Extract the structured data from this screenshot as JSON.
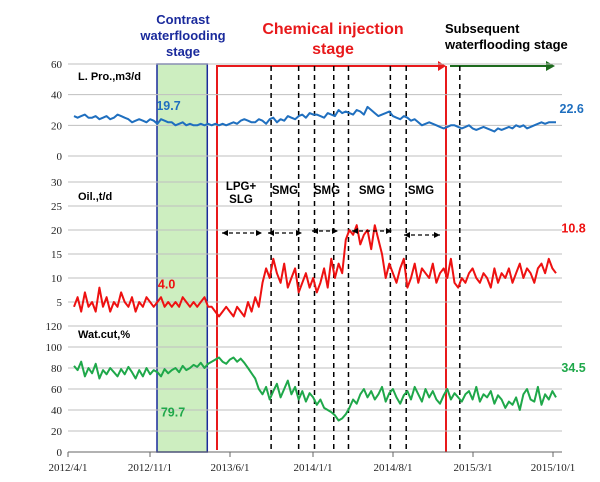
{
  "stages": {
    "contrast": [
      "Contrast",
      "waterflooding",
      "stage"
    ],
    "chemical": [
      "Chemical  injection",
      "stage"
    ],
    "subsequent": [
      "Subsequent",
      "waterflooding stage"
    ]
  },
  "segments": {
    "lpg": [
      "LPG+",
      "SLG"
    ],
    "smg": [
      "SMG",
      "SMG",
      "SMG",
      "SMG"
    ]
  },
  "panels": {
    "liquid_label": "L. Pro.,m3/d",
    "oil_label": "Oil.,t/d",
    "watcut_label": "Wat.cut,%"
  },
  "colors": {
    "liquid": "#1f6fbf",
    "oil": "#ee1111",
    "watcut": "#1fa84a",
    "stage_box": "#1a2a9c",
    "chemical": "#e8191b",
    "subsequent": "#1e6b1e",
    "contrast_fill": "#cdeec0"
  },
  "chart_data": {
    "type": "line",
    "x_ticks": [
      "2012/4/1",
      "2012/11/1",
      "2013/6/1",
      "2014/1/1",
      "2014/8/1",
      "2015/3/1",
      "2015/10/1"
    ],
    "markers": {
      "contrast_window": [
        "2012/11/1",
        "2013/3/1"
      ],
      "chemical_start": "2013/4/15",
      "subsequent_start": "2015/2/25",
      "dashed_lines": [
        "2013/9/15",
        "2013/11/25",
        "2014/1/5",
        "2014/2/25",
        "2014/4/5",
        "2014/7/25",
        "2014/9/5",
        "2015/1/25"
      ]
    },
    "panels": [
      {
        "name": "L. Pro.,m3/d",
        "ylim": [
          0,
          60
        ],
        "yticks": [
          0,
          20,
          40,
          60
        ],
        "series": [
          {
            "color": "liquid",
            "values": [
              26,
              25,
              26,
              27,
              25,
              25,
              26,
              24,
              25,
              26,
              24,
              25,
              27,
              26,
              25,
              24,
              22,
              23,
              24,
              23,
              22,
              24,
              23,
              21,
              24,
              23,
              22,
              22,
              20,
              21,
              22,
              20,
              21,
              20,
              20,
              21,
              20,
              21,
              20,
              21,
              20,
              21,
              20,
              21,
              22,
              21,
              23,
              24,
              23,
              22,
              22,
              24,
              23,
              21,
              24,
              25,
              22,
              24,
              23,
              26,
              25,
              24,
              26,
              27,
              25,
              28,
              27,
              27,
              26,
              25,
              28,
              27,
              26,
              30,
              28,
              29,
              28,
              27,
              30,
              29,
              27,
              32,
              30,
              28,
              26,
              27,
              28,
              29,
              26,
              25,
              24,
              26,
              25,
              23,
              24,
              22,
              20,
              21,
              22,
              21,
              20,
              19,
              18,
              19,
              20,
              20,
              19,
              18,
              19,
              20,
              18,
              17,
              18,
              19,
              18,
              17,
              16,
              18,
              17,
              18,
              19,
              18,
              20,
              19,
              20,
              18,
              19,
              20,
              21,
              22,
              21,
              22,
              22,
              22
            ]
          }
        ],
        "annotations": [
          {
            "text": "19.7",
            "color": "liquid",
            "x": "2012/12/20",
            "y": 30
          },
          {
            "text": "22.6",
            "color": "liquid",
            "x": "2015/11/20",
            "y": 28
          }
        ]
      },
      {
        "name": "Oil.,t/d",
        "ylim": [
          0,
          30
        ],
        "yticks": [
          0,
          5,
          10,
          15,
          20,
          25,
          30
        ],
        "series": [
          {
            "color": "oil",
            "values": [
              4,
              6,
              3,
              7,
              4,
              5,
              3,
              8,
              4,
              6,
              3,
              5,
              4,
              7,
              5,
              4,
              6,
              3,
              5,
              4,
              6,
              5,
              4,
              5,
              6,
              4,
              5,
              4,
              5,
              4,
              6,
              5,
              4,
              5,
              4,
              5,
              6,
              4,
              4,
              3,
              2,
              3,
              4,
              3,
              2,
              4,
              3,
              2,
              5,
              3,
              6,
              4,
              9,
              12,
              10,
              14,
              11,
              9,
              13,
              8,
              10,
              12,
              7,
              9,
              11,
              8,
              10,
              7,
              9,
              12,
              8,
              14,
              10,
              13,
              11,
              18,
              20,
              19,
              21,
              17,
              19,
              20,
              16,
              21,
              18,
              15,
              10,
              13,
              11,
              9,
              12,
              14,
              8,
              10,
              13,
              9,
              12,
              11,
              10,
              13,
              9,
              11,
              12,
              10,
              14,
              9,
              8,
              10,
              9,
              11,
              12,
              10,
              9,
              11,
              10,
              8,
              12,
              9,
              11,
              10,
              12,
              9,
              11,
              13,
              10,
              12,
              11,
              9,
              12,
              13,
              11,
              14,
              12,
              11
            ]
          }
        ],
        "annotations": [
          {
            "text": "4.0",
            "color": "oil",
            "x": "2012/12/15",
            "y": 7.8
          },
          {
            "text": "10.8",
            "color": "oil",
            "x": "2015/11/25",
            "y": 19.5
          }
        ]
      },
      {
        "name": "Wat.cut,%",
        "ylim": [
          0,
          120
        ],
        "yticks": [
          0,
          20,
          40,
          60,
          80,
          100,
          120
        ],
        "series": [
          {
            "color": "watcut",
            "values": [
              82,
              78,
              86,
              72,
              80,
              75,
              84,
              70,
              78,
              74,
              80,
              76,
              72,
              79,
              74,
              81,
              76,
              70,
              78,
              72,
              80,
              74,
              78,
              76,
              72,
              79,
              75,
              78,
              80,
              76,
              82,
              78,
              80,
              83,
              81,
              85,
              80,
              84,
              86,
              88,
              90,
              86,
              84,
              88,
              90,
              86,
              89,
              85,
              80,
              75,
              70,
              60,
              55,
              62,
              50,
              58,
              65,
              52,
              60,
              68,
              55,
              62,
              50,
              58,
              48,
              56,
              52,
              45,
              50,
              42,
              40,
              38,
              35,
              30,
              32,
              36,
              42,
              50,
              46,
              55,
              60,
              52,
              58,
              50,
              55,
              62,
              48,
              56,
              60,
              52,
              46,
              54,
              58,
              50,
              62,
              55,
              48,
              60,
              52,
              58,
              50,
              46,
              54,
              60,
              50,
              56,
              52,
              48,
              55,
              58,
              50,
              62,
              48,
              55,
              52,
              58,
              46,
              54,
              50,
              42,
              48,
              45,
              52,
              40,
              55,
              60,
              50,
              48,
              62,
              45,
              55,
              50,
              58,
              52
            ]
          }
        ],
        "annotations": [
          {
            "text": "79.7",
            "color": "watcut",
            "x": "2013/1/1",
            "y": 34
          },
          {
            "text": "34.5",
            "color": "watcut",
            "x": "2015/11/25",
            "y": 76
          }
        ]
      }
    ]
  }
}
